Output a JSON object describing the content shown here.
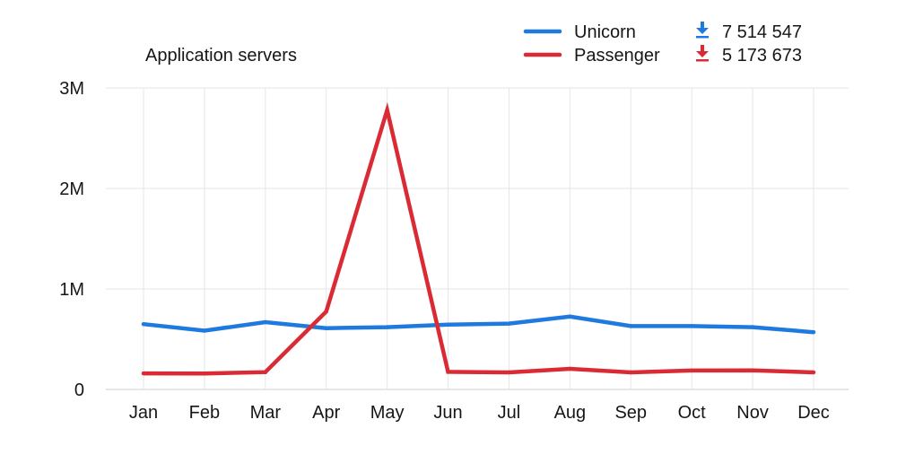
{
  "chart_data": {
    "type": "line",
    "title": "Application servers",
    "xlabel": "",
    "ylabel": "",
    "categories": [
      "Jan",
      "Feb",
      "Mar",
      "Apr",
      "May",
      "Jun",
      "Jul",
      "Aug",
      "Sep",
      "Oct",
      "Nov",
      "Dec"
    ],
    "ylim": [
      0,
      3000000
    ],
    "y_ticks": [
      {
        "value": 0,
        "label": "0"
      },
      {
        "value": 1000000,
        "label": "1M"
      },
      {
        "value": 2000000,
        "label": "2M"
      },
      {
        "value": 3000000,
        "label": "3M"
      }
    ],
    "grid": true,
    "legend_position": "top-right",
    "series": [
      {
        "name": "Unicorn",
        "color": "#1f7ae0",
        "total": "7 514 547",
        "total_icon": "download-arrow-icon",
        "values": [
          650000,
          585000,
          670000,
          610000,
          620000,
          645000,
          655000,
          725000,
          630000,
          630000,
          620000,
          570000
        ]
      },
      {
        "name": "Passenger",
        "color": "#da2b35",
        "total": "5 173 673",
        "total_icon": "download-arrow-icon",
        "values": [
          160000,
          158000,
          172000,
          775000,
          2780000,
          175000,
          170000,
          205000,
          170000,
          188000,
          190000,
          170000
        ]
      }
    ]
  }
}
